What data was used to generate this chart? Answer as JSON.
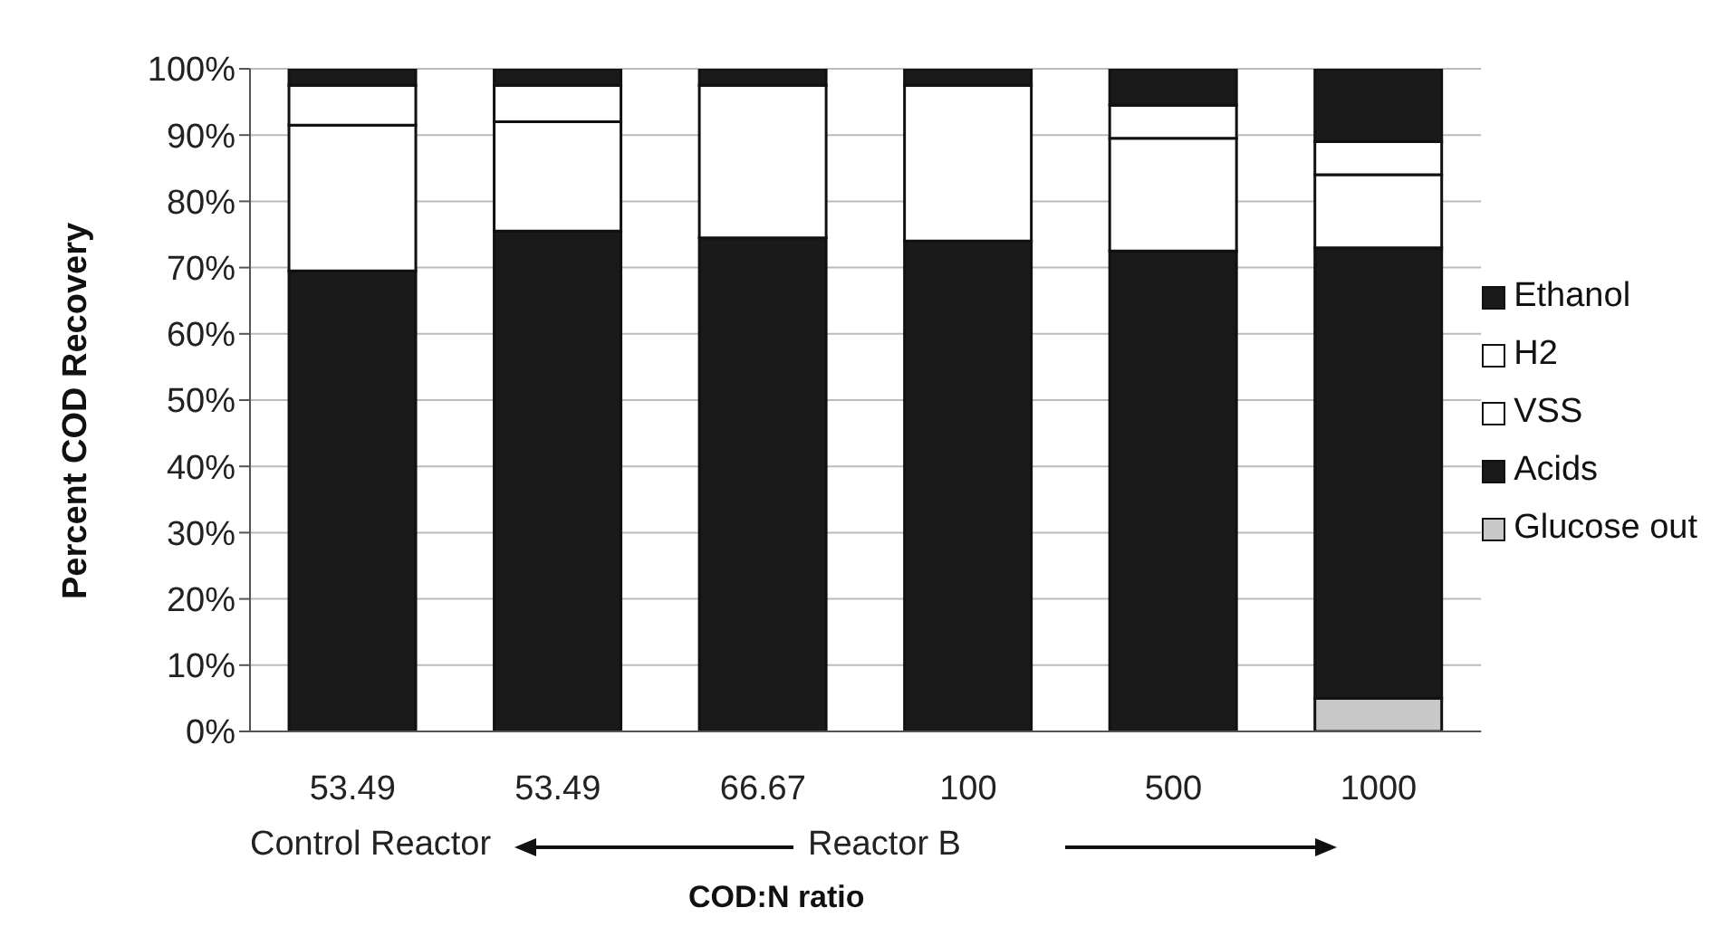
{
  "chart_data": {
    "type": "bar",
    "stacked": true,
    "ylabel": "Percent COD Recovery",
    "xlabel": "COD:N ratio",
    "categories": [
      "53.49",
      "53.49",
      "66.67",
      "100",
      "500",
      "1000"
    ],
    "series": [
      {
        "name": "Glucose out",
        "color": "#c8c8c8",
        "values": [
          0,
          0,
          0,
          0,
          0,
          5
        ]
      },
      {
        "name": "Acids",
        "color": "#1a1a1a",
        "values": [
          69.5,
          75.5,
          74.5,
          74,
          72.5,
          68
        ]
      },
      {
        "name": "VSS",
        "color": "#ffffff",
        "values": [
          22,
          16.5,
          23,
          23.5,
          17,
          11
        ]
      },
      {
        "name": "H2",
        "color": "#ffffff",
        "values": [
          6,
          5.5,
          0,
          0,
          5,
          5
        ]
      },
      {
        "name": "Ethanol",
        "color": "#1a1a1a",
        "values": [
          2.5,
          2.5,
          2.5,
          2.5,
          5.5,
          11
        ]
      }
    ],
    "ylim": [
      0,
      100
    ],
    "yticks": [
      {
        "value": 0,
        "label": "0%"
      },
      {
        "value": 10,
        "label": "10%"
      },
      {
        "value": 20,
        "label": "20%"
      },
      {
        "value": 30,
        "label": "30%"
      },
      {
        "value": 40,
        "label": "40%"
      },
      {
        "value": 50,
        "label": "50%"
      },
      {
        "value": 60,
        "label": "60%"
      },
      {
        "value": 70,
        "label": "70%"
      },
      {
        "value": 80,
        "label": "80%"
      },
      {
        "value": 90,
        "label": "90%"
      },
      {
        "value": 100,
        "label": "100%"
      }
    ],
    "grid": "y",
    "legend": "right",
    "annotations": [
      "Control Reactor",
      "Reactor B"
    ]
  }
}
